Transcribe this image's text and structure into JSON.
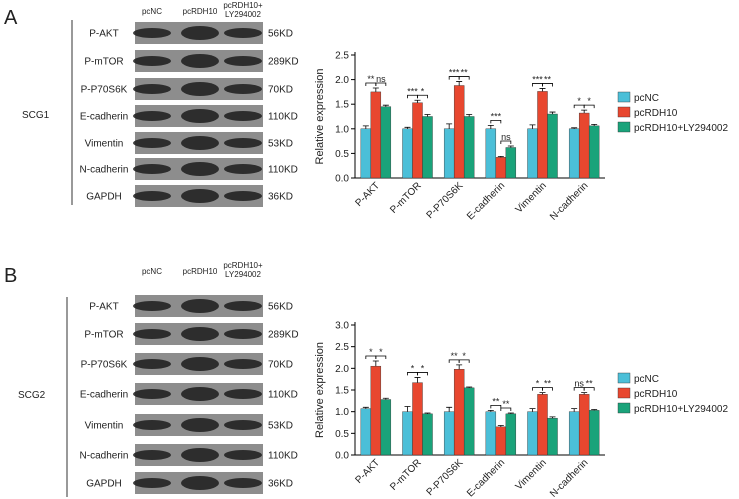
{
  "panels": [
    "A",
    "B"
  ],
  "blots": [
    {
      "cell": "SCG1",
      "lanes": [
        [
          "pcNC"
        ],
        [
          "pcRDH10"
        ],
        [
          "pcRDH10+",
          "LY294002"
        ]
      ],
      "proteins": [
        "P-AKT",
        "P-mTOR",
        "P-P70S6K",
        "E-cadherin",
        "Vimentin",
        "N-cadherin",
        "GAPDH"
      ],
      "sizes": [
        "56KD",
        "289KD",
        "70KD",
        "110KD",
        "53KD",
        "110KD",
        "36KD"
      ]
    },
    {
      "cell": "SCG2",
      "lanes": [
        [
          "pcNC"
        ],
        [
          "pcRDH10"
        ],
        [
          "pcRDH10+",
          "LY294002"
        ]
      ],
      "proteins": [
        "P-AKT",
        "P-mTOR",
        "P-P70S6K",
        "E-cadherin",
        "Vimentin",
        "N-cadherin",
        "GAPDH"
      ],
      "sizes": [
        "56KD",
        "289KD",
        "70KD",
        "110KD",
        "53KD",
        "110KD",
        "36KD"
      ]
    }
  ],
  "chart_data": [
    {
      "type": "bar",
      "y_label": "Relative expression",
      "categories": [
        "P-AKT",
        "P-mTOR",
        "P-P70S6K",
        "E-cadherin",
        "Vimentin",
        "N-cadherin"
      ],
      "series": [
        {
          "name": "pcNC",
          "color": "#4bbfd8",
          "values": [
            1.0,
            1.0,
            1.0,
            1.0,
            1.0,
            1.0
          ],
          "errors": [
            0.06,
            0.03,
            0.1,
            0.07,
            0.08,
            0.02
          ]
        },
        {
          "name": "pcRDH10",
          "color": "#e8472f",
          "values": [
            1.75,
            1.53,
            1.88,
            0.42,
            1.76,
            1.32
          ],
          "errors": [
            0.08,
            0.05,
            0.08,
            0.02,
            0.06,
            0.06
          ]
        },
        {
          "name": "pcRDH10+LY294002",
          "color": "#1aa37a",
          "values": [
            1.45,
            1.25,
            1.25,
            0.62,
            1.3,
            1.06
          ],
          "errors": [
            0.03,
            0.04,
            0.04,
            0.03,
            0.04,
            0.03
          ]
        }
      ],
      "annotations": [
        [
          "**",
          "ns"
        ],
        [
          "***",
          "*"
        ],
        [
          "***",
          "**"
        ],
        [
          "***",
          "ns"
        ],
        [
          "***",
          "**"
        ],
        [
          "*",
          "*"
        ]
      ],
      "ylim": [
        0,
        2.5
      ],
      "yticks": [
        {
          "value": 0,
          "label": "0.0"
        },
        0.5,
        {
          "value": 1,
          "label": "1.0"
        },
        1.5,
        {
          "value": 2,
          "label": "2.0"
        },
        2.5
      ],
      "legend": "right"
    },
    {
      "type": "bar",
      "y_label": "Relative expression",
      "categories": [
        "P-AKT",
        "P-mTOR",
        "P-P70S6K",
        "E-cadherin",
        "Vimentin",
        "N-cadherin"
      ],
      "series": [
        {
          "name": "pcNC",
          "color": "#4bbfd8",
          "values": [
            1.07,
            1.0,
            1.0,
            1.0,
            1.0,
            1.0
          ],
          "errors": [
            0.03,
            0.12,
            0.1,
            0.03,
            0.07,
            0.07
          ]
        },
        {
          "name": "pcRDH10",
          "color": "#e8472f",
          "values": [
            2.05,
            1.67,
            1.98,
            0.65,
            1.4,
            1.4
          ],
          "errors": [
            0.12,
            0.12,
            0.1,
            0.03,
            0.04,
            0.04
          ]
        },
        {
          "name": "pcRDH10+LY294002",
          "color": "#1aa37a",
          "values": [
            1.28,
            0.95,
            1.55,
            0.95,
            0.85,
            1.03
          ],
          "errors": [
            0.03,
            0.02,
            0.02,
            0.02,
            0.03,
            0.02
          ]
        }
      ],
      "annotations": [
        [
          "*",
          "*"
        ],
        [
          "*",
          "*"
        ],
        [
          "**",
          "*"
        ],
        [
          "**",
          "**"
        ],
        [
          "*",
          "**"
        ],
        [
          "ns",
          "**"
        ]
      ],
      "ylim": [
        0,
        3
      ],
      "yticks": [
        {
          "value": 0,
          "label": "0.0"
        },
        0.5,
        {
          "value": 1,
          "label": "1.0"
        },
        1.5,
        {
          "value": 2,
          "label": "2.0"
        },
        2.5,
        {
          "value": 3,
          "label": "3.0"
        }
      ],
      "legend": "right"
    }
  ]
}
